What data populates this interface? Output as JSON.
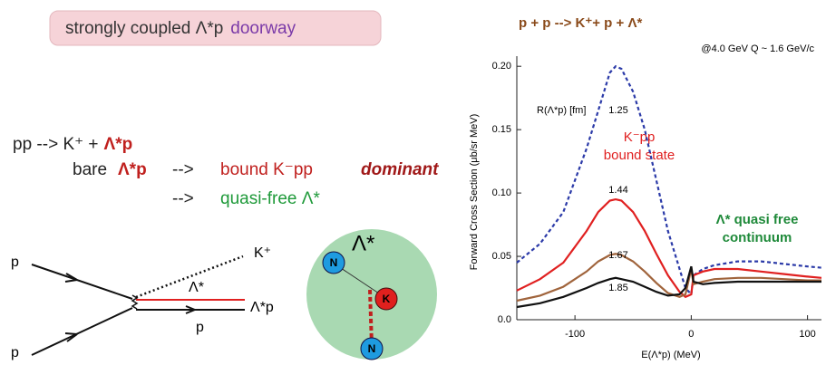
{
  "slide": {
    "header": {
      "main": "strongly coupled Λ*p",
      "highlight": "doorway"
    },
    "reactions": {
      "line1": {
        "text": "pp --> K⁺ +",
        "product": "Λ*p"
      },
      "line2": {
        "prefix": "bare",
        "state": "Λ*p",
        "arrow": "-->",
        "channel": "bound K⁻pp",
        "note": "dominant"
      },
      "line3": {
        "arrow": "-->",
        "channel": "quasi-free Λ*"
      }
    },
    "diagram": {
      "in1": "p",
      "in2": "p",
      "kaon": "K⁺",
      "lambda": "Λ*",
      "pair": "Λ*p",
      "proton": "p"
    },
    "cluster": {
      "n1": "N",
      "k": "K",
      "n2": "N",
      "lambda": "Λ*"
    }
  },
  "chart_data": {
    "type": "line",
    "title": "p + p --> K⁺+ p + Λ*",
    "subtitle": "@4.0 GeV  Q ~ 1.6 GeV/c",
    "x_label": "E(Λ*p)   (MeV)",
    "y_label": "Forward Cross Section   (μb/sr MeV)",
    "annotations": {
      "radius": "R(Λ*p)  [fm]",
      "bound1": "K⁻pp",
      "bound2": "bound state",
      "free1": "Λ* quasi free",
      "free2": "continuum"
    },
    "x": [
      -150,
      -130,
      -110,
      -90,
      -80,
      -70,
      -65,
      -60,
      -50,
      -40,
      -30,
      -20,
      -10,
      -5,
      0,
      2,
      10,
      20,
      40,
      60,
      80,
      100,
      112
    ],
    "series": [
      {
        "name": "1.25",
        "color": "#2b3aa8",
        "style": "dashed",
        "values": [
          0.045,
          0.06,
          0.085,
          0.135,
          0.165,
          0.195,
          0.2,
          0.198,
          0.18,
          0.15,
          0.11,
          0.07,
          0.04,
          0.025,
          0.02,
          0.035,
          0.04,
          0.043,
          0.046,
          0.046,
          0.044,
          0.042,
          0.041
        ]
      },
      {
        "name": "1.44",
        "color": "#e02020",
        "style": "solid",
        "values": [
          0.023,
          0.032,
          0.045,
          0.07,
          0.085,
          0.094,
          0.095,
          0.094,
          0.085,
          0.07,
          0.052,
          0.035,
          0.022,
          0.018,
          0.02,
          0.035,
          0.038,
          0.04,
          0.04,
          0.038,
          0.036,
          0.034,
          0.033
        ]
      },
      {
        "name": "1.67",
        "color": "#a0643c",
        "style": "solid",
        "values": [
          0.015,
          0.019,
          0.026,
          0.038,
          0.046,
          0.051,
          0.052,
          0.051,
          0.046,
          0.038,
          0.029,
          0.021,
          0.018,
          0.02,
          0.04,
          0.028,
          0.03,
          0.032,
          0.033,
          0.033,
          0.032,
          0.031,
          0.031
        ]
      },
      {
        "name": "1.85",
        "color": "#111111",
        "style": "solid",
        "values": [
          0.01,
          0.013,
          0.018,
          0.025,
          0.029,
          0.032,
          0.033,
          0.032,
          0.03,
          0.026,
          0.022,
          0.019,
          0.02,
          0.025,
          0.042,
          0.03,
          0.028,
          0.029,
          0.03,
          0.03,
          0.03,
          0.03,
          0.03
        ]
      }
    ],
    "xlim": [
      -150,
      112
    ],
    "xticks": [
      -100,
      0,
      100
    ],
    "ylim": [
      0,
      0.208
    ],
    "yticks": [
      {
        "value": 0,
        "label": "0.0"
      },
      0.05,
      {
        "value": 0.1,
        "label": "0.10"
      },
      0.15,
      {
        "value": 0.2,
        "label": "0.20"
      }
    ]
  }
}
